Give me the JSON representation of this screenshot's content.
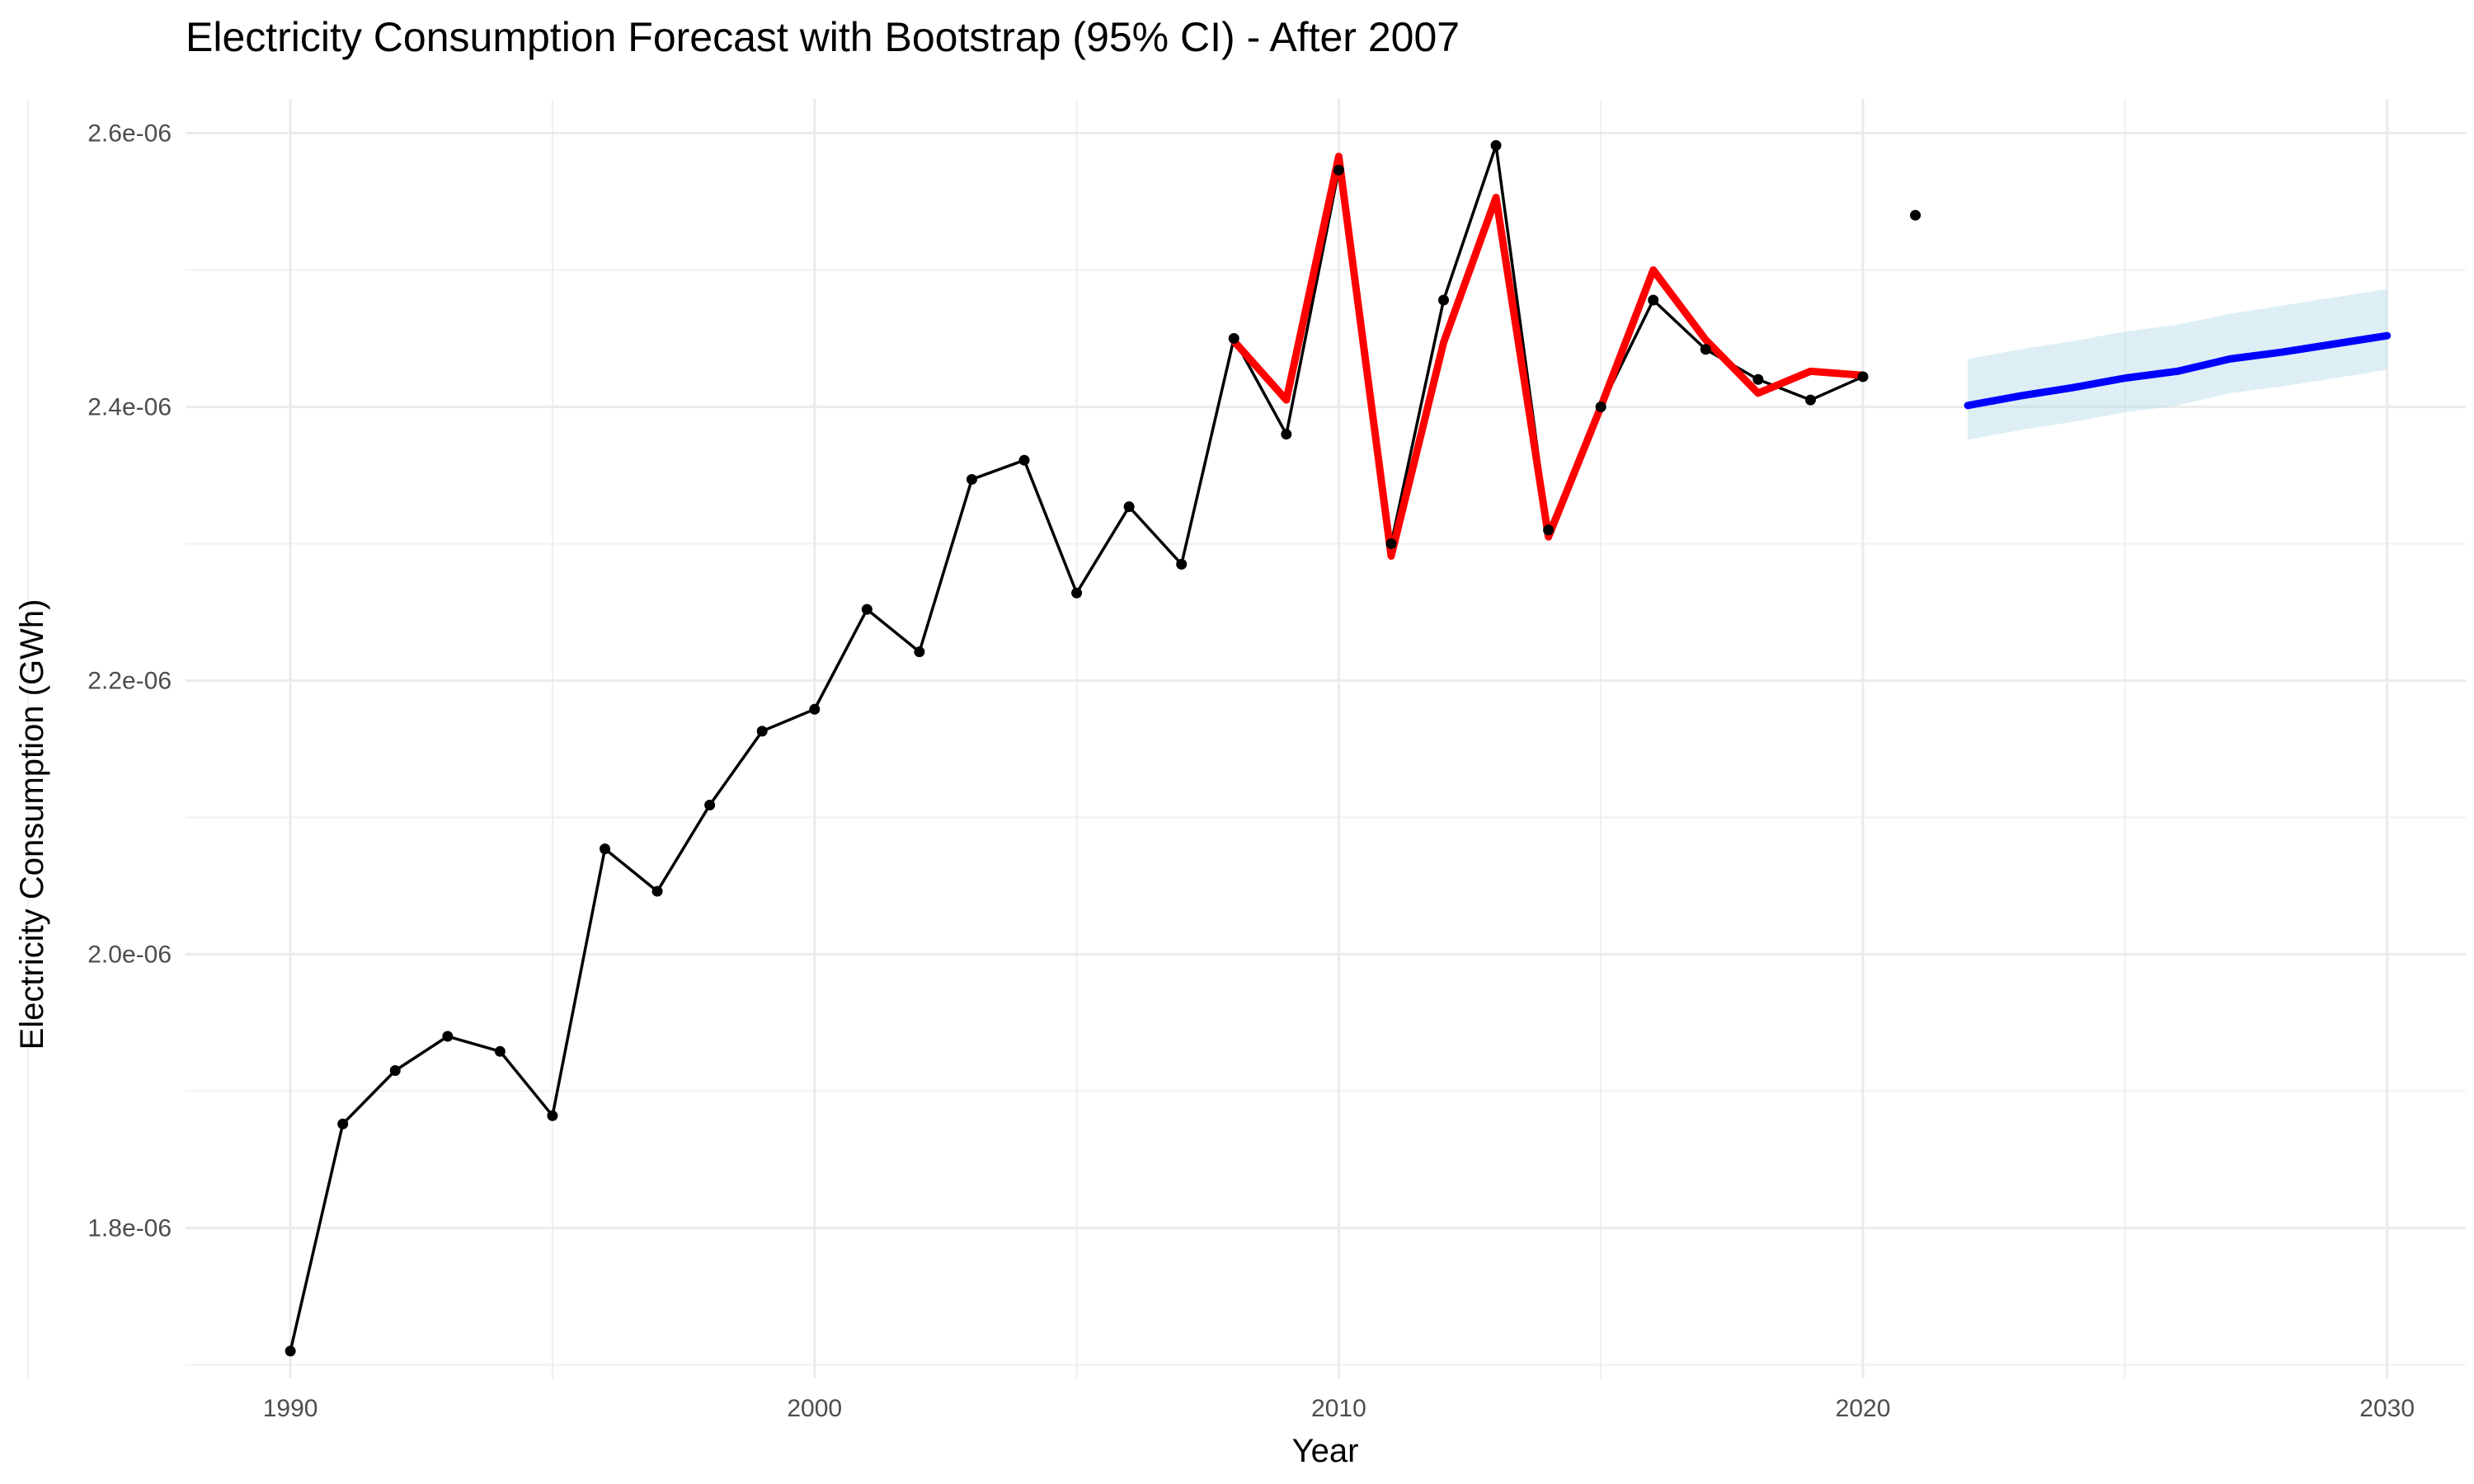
{
  "chart_data": {
    "type": "line",
    "title": "Electricity Consumption Forecast with Bootstrap (95% CI) - After 2007",
    "xlabel": "Year",
    "ylabel": "Electricity Consumption (GWh)",
    "xlim": [
      1988,
      2031.5
    ],
    "ylim": [
      1.69e-06,
      2.625e-06
    ],
    "x_ticks": [
      1990,
      2000,
      2010,
      2020,
      2030
    ],
    "x_tick_labels": [
      "1990",
      "2000",
      "2010",
      "2020",
      "2030"
    ],
    "y_ticks": [
      1.8e-06,
      2e-06,
      2.2e-06,
      2.4e-06,
      2.6e-06
    ],
    "y_tick_labels": [
      "1.8e-06",
      "2.0e-06",
      "2.2e-06",
      "2.4e-06",
      "2.6e-06"
    ],
    "grid": true,
    "legend": "none",
    "colors": {
      "actual": "#000000",
      "fitted": "#ff0000",
      "forecast": "#0000ff",
      "ci": "#add8e6"
    },
    "series": [
      {
        "role": "actual",
        "x": [
          1990,
          1991,
          1992,
          1993,
          1994,
          1995,
          1996,
          1997,
          1998,
          1999,
          2000,
          2001,
          2002,
          2003,
          2004,
          2005,
          2006,
          2007,
          2008,
          2009,
          2010,
          2011,
          2012,
          2013,
          2014,
          2015,
          2016,
          2017,
          2018,
          2019,
          2020
        ],
        "values": [
          1.71e-06,
          1.876e-06,
          1.915e-06,
          1.94e-06,
          1.929e-06,
          1.882e-06,
          2.077e-06,
          2.046e-06,
          2.109e-06,
          2.163e-06,
          2.179e-06,
          2.252e-06,
          2.221e-06,
          2.347e-06,
          2.361e-06,
          2.264e-06,
          2.327e-06,
          2.285e-06,
          2.45e-06,
          2.38e-06,
          2.573e-06,
          2.3e-06,
          2.478e-06,
          2.591e-06,
          2.31e-06,
          2.4e-06,
          2.478e-06,
          2.442e-06,
          2.42e-06,
          2.405e-06,
          2.422e-06
        ]
      },
      {
        "role": "actual-point",
        "x": [
          2021
        ],
        "values": [
          2.54e-06
        ]
      },
      {
        "role": "fitted",
        "x": [
          2008,
          2009,
          2010,
          2011,
          2012,
          2013,
          2014,
          2015,
          2016,
          2017,
          2018,
          2019,
          2020
        ],
        "values": [
          2.448e-06,
          2.405e-06,
          2.583e-06,
          2.291e-06,
          2.447e-06,
          2.553e-06,
          2.305e-06,
          2.4e-06,
          2.5e-06,
          2.449e-06,
          2.41e-06,
          2.426e-06,
          2.423e-06
        ]
      },
      {
        "role": "forecast",
        "x": [
          2022,
          2023,
          2024,
          2025,
          2026,
          2027,
          2028,
          2029,
          2030
        ],
        "values": [
          2.401e-06,
          2.408e-06,
          2.414e-06,
          2.421e-06,
          2.426e-06,
          2.435e-06,
          2.44e-06,
          2.446e-06,
          2.452e-06
        ],
        "lower": [
          2.376e-06,
          2.383e-06,
          2.389e-06,
          2.396e-06,
          2.401e-06,
          2.41e-06,
          2.415e-06,
          2.421e-06,
          2.427e-06
        ],
        "upper": [
          2.435e-06,
          2.442e-06,
          2.448e-06,
          2.455e-06,
          2.46e-06,
          2.468e-06,
          2.474e-06,
          2.48e-06,
          2.486e-06
        ]
      }
    ]
  }
}
